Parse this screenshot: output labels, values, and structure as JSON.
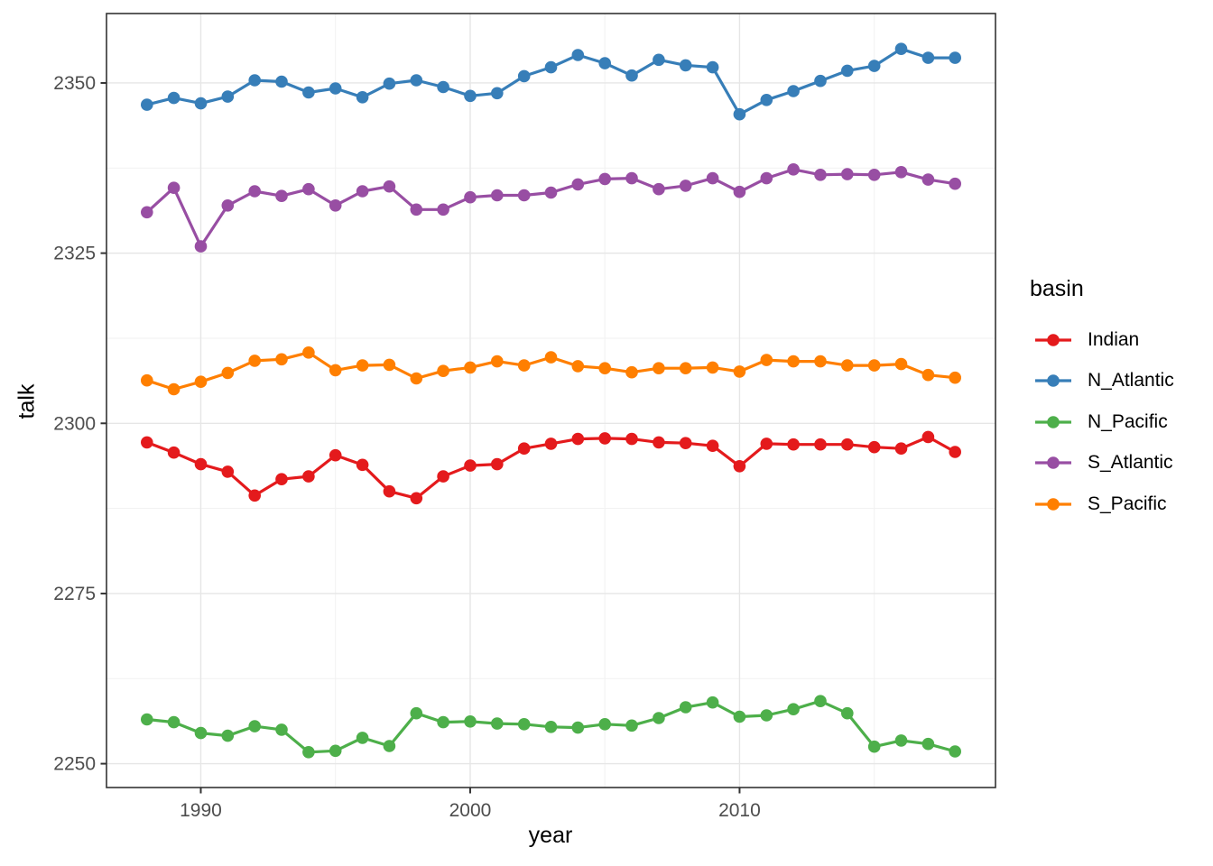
{
  "chart_data": {
    "type": "line",
    "title": "",
    "xlabel": "year",
    "ylabel": "talk",
    "legend_title": "basin",
    "legend_position": "right",
    "grid": true,
    "xlim": [
      1986.5,
      2019.5
    ],
    "ylim": [
      2246.5,
      2360.2
    ],
    "x_major_ticks": [
      1990,
      2000,
      2010
    ],
    "x_minor_gridlines": [
      1995,
      2005,
      2015
    ],
    "y_major_ticks": [
      2250,
      2275,
      2300,
      2325,
      2350
    ],
    "y_minor_gridlines": [
      2262.5,
      2287.5,
      2312.5,
      2337.5
    ],
    "x": [
      1988,
      1989,
      1990,
      1991,
      1992,
      1993,
      1994,
      1995,
      1996,
      1997,
      1998,
      1999,
      2000,
      2001,
      2002,
      2003,
      2004,
      2005,
      2006,
      2007,
      2008,
      2009,
      2010,
      2011,
      2012,
      2013,
      2014,
      2015,
      2016,
      2017,
      2018
    ],
    "series": [
      {
        "name": "Indian",
        "color": "#E41A1C",
        "values": [
          2297.2,
          2295.7,
          2294.0,
          2292.9,
          2289.4,
          2291.8,
          2292.2,
          2295.3,
          2293.9,
          2290.0,
          2289.0,
          2292.2,
          2293.8,
          2294.0,
          2296.3,
          2297.0,
          2297.7,
          2297.8,
          2297.7,
          2297.2,
          2297.1,
          2296.7,
          2293.7,
          2297.0,
          2296.9,
          2296.9,
          2296.9,
          2296.5,
          2296.3,
          2298.0,
          2295.8
        ]
      },
      {
        "name": "N_Atlantic",
        "color": "#377EB8",
        "values": [
          2346.8,
          2347.8,
          2347.0,
          2348.0,
          2350.4,
          2350.2,
          2348.6,
          2349.2,
          2347.9,
          2349.9,
          2350.4,
          2349.4,
          2348.1,
          2348.5,
          2351.0,
          2352.3,
          2354.1,
          2352.9,
          2351.1,
          2353.4,
          2352.6,
          2352.3,
          2345.4,
          2347.5,
          2348.8,
          2350.3,
          2351.8,
          2352.5,
          2355.0,
          2353.7,
          2353.7
        ]
      },
      {
        "name": "N_Pacific",
        "color": "#4DAF4A",
        "values": [
          2256.5,
          2256.1,
          2254.5,
          2254.1,
          2255.5,
          2255.0,
          2251.7,
          2251.9,
          2253.8,
          2252.6,
          2257.4,
          2256.1,
          2256.2,
          2255.9,
          2255.8,
          2255.4,
          2255.3,
          2255.8,
          2255.6,
          2256.7,
          2258.3,
          2259.0,
          2256.9,
          2257.1,
          2258.0,
          2259.2,
          2257.4,
          2252.5,
          2253.4,
          2252.9,
          2251.8
        ]
      },
      {
        "name": "S_Atlantic",
        "color": "#984EA3",
        "values": [
          2331.0,
          2334.6,
          2326.0,
          2332.0,
          2334.1,
          2333.4,
          2334.4,
          2332.0,
          2334.1,
          2334.8,
          2331.4,
          2331.4,
          2333.2,
          2333.5,
          2333.5,
          2333.9,
          2335.1,
          2335.9,
          2336.0,
          2334.4,
          2334.9,
          2336.0,
          2334.0,
          2336.0,
          2337.3,
          2336.5,
          2336.6,
          2336.5,
          2336.9,
          2335.8,
          2335.2
        ]
      },
      {
        "name": "S_Pacific",
        "color": "#FF7F00",
        "values": [
          2306.3,
          2305.0,
          2306.1,
          2307.4,
          2309.2,
          2309.4,
          2310.4,
          2307.8,
          2308.5,
          2308.6,
          2306.6,
          2307.7,
          2308.2,
          2309.1,
          2308.5,
          2309.7,
          2308.4,
          2308.1,
          2307.5,
          2308.1,
          2308.1,
          2308.2,
          2307.6,
          2309.3,
          2309.1,
          2309.1,
          2308.5,
          2308.5,
          2308.7,
          2307.1,
          2306.7
        ]
      }
    ]
  },
  "colors": {
    "background": "#ffffff",
    "panel_background": "#ffffff",
    "panel_border": "#333333",
    "grid_major": "#e6e6e6",
    "grid_minor": "#f2f2f2",
    "tick_mark": "#333333",
    "tick_label": "#4d4d4d",
    "axis_title": "#000000"
  }
}
